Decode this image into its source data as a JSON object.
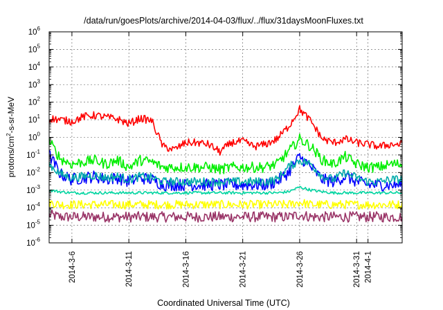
{
  "chart_data": {
    "type": "line",
    "title": "/data/run/goesPlots/archive/2014-04-03/flux/../flux/31daysMoonFluxes.txt",
    "xlabel": "Coordinated Universal Time (UTC)",
    "ylabel": "protons/cm2-s-sr-MeV",
    "ylabel_parts": [
      "protons/cm",
      "2",
      "-s-sr-MeV"
    ],
    "yscale": "log",
    "ylim_exponents": [
      -6,
      6
    ],
    "y_ticks": [
      {
        "base": "10",
        "exp": "-6"
      },
      {
        "base": "10",
        "exp": "-5"
      },
      {
        "base": "10",
        "exp": "-4"
      },
      {
        "base": "10",
        "exp": "-3"
      },
      {
        "base": "10",
        "exp": "-2"
      },
      {
        "base": "10",
        "exp": "-1"
      },
      {
        "base": "10",
        "exp": "0"
      },
      {
        "base": "10",
        "exp": "1"
      },
      {
        "base": "10",
        "exp": "2"
      },
      {
        "base": "10",
        "exp": "3"
      },
      {
        "base": "10",
        "exp": "4"
      },
      {
        "base": "10",
        "exp": "5"
      },
      {
        "base": "10",
        "exp": "6"
      }
    ],
    "xlim": [
      "2014-03-04T00:00",
      "2014-04-04T00:00"
    ],
    "x_ticks": [
      {
        "label": "2014-3-6",
        "date": "2014-03-06"
      },
      {
        "label": "2014-3-11",
        "date": "2014-03-11"
      },
      {
        "label": "2014-3-16",
        "date": "2014-03-16"
      },
      {
        "label": "2014-3-21",
        "date": "2014-03-21"
      },
      {
        "label": "2014-3-26",
        "date": "2014-03-26"
      },
      {
        "label": "2014-3-31",
        "date": "2014-03-31"
      },
      {
        "label": "2014-4-1",
        "date": "2014-04-01"
      }
    ],
    "grid": true,
    "legend": "none",
    "series": [
      {
        "color": "#ff0000",
        "noise": 0.22,
        "x": [
          "2014-03-04",
          "2014-03-05",
          "2014-03-06",
          "2014-03-07",
          "2014-03-08",
          "2014-03-09",
          "2014-03-10",
          "2014-03-11",
          "2014-03-12",
          "2014-03-13",
          "2014-03-14",
          "2014-03-15",
          "2014-03-16",
          "2014-03-17",
          "2014-03-18",
          "2014-03-19",
          "2014-03-20",
          "2014-03-21",
          "2014-03-22",
          "2014-03-23",
          "2014-03-24",
          "2014-03-25",
          "2014-03-26",
          "2014-03-27",
          "2014-03-28",
          "2014-03-29",
          "2014-03-30",
          "2014-03-31",
          "2014-04-01",
          "2014-04-02",
          "2014-04-03"
        ],
        "y": [
          12,
          10,
          8,
          15,
          18,
          14,
          11,
          6,
          12,
          9,
          0.3,
          0.2,
          0.5,
          0.5,
          0.4,
          0.15,
          0.5,
          0.6,
          0.3,
          0.4,
          0.8,
          4,
          40,
          8,
          0.8,
          0.5,
          0.8,
          0.5,
          0.4,
          0.3,
          0.4
        ]
      },
      {
        "color": "#00ee00",
        "noise": 0.3,
        "x": [
          "2014-03-04",
          "2014-03-05",
          "2014-03-06",
          "2014-03-07",
          "2014-03-08",
          "2014-03-09",
          "2014-03-10",
          "2014-03-11",
          "2014-03-12",
          "2014-03-13",
          "2014-03-14",
          "2014-03-15",
          "2014-03-16",
          "2014-03-17",
          "2014-03-18",
          "2014-03-19",
          "2014-03-20",
          "2014-03-21",
          "2014-03-22",
          "2014-03-23",
          "2014-03-24",
          "2014-03-25",
          "2014-03-26",
          "2014-03-27",
          "2014-03-28",
          "2014-03-29",
          "2014-03-30",
          "2014-03-31",
          "2014-04-01",
          "2014-04-02",
          "2014-04-03"
        ],
        "y": [
          0.6,
          0.06,
          0.03,
          0.04,
          0.05,
          0.03,
          0.05,
          0.02,
          0.05,
          0.04,
          0.02,
          0.02,
          0.02,
          0.02,
          0.02,
          0.015,
          0.02,
          0.02,
          0.02,
          0.02,
          0.03,
          0.15,
          0.8,
          0.3,
          0.05,
          0.03,
          0.08,
          0.03,
          0.02,
          0.02,
          0.03
        ]
      },
      {
        "color": "#00aaaa",
        "noise": 0.25,
        "x": [
          "2014-03-04",
          "2014-03-05",
          "2014-03-06",
          "2014-03-07",
          "2014-03-08",
          "2014-03-09",
          "2014-03-10",
          "2014-03-11",
          "2014-03-12",
          "2014-03-13",
          "2014-03-14",
          "2014-03-15",
          "2014-03-16",
          "2014-03-17",
          "2014-03-18",
          "2014-03-19",
          "2014-03-20",
          "2014-03-21",
          "2014-03-22",
          "2014-03-23",
          "2014-03-24",
          "2014-03-25",
          "2014-03-26",
          "2014-03-27",
          "2014-03-28",
          "2014-03-29",
          "2014-03-30",
          "2014-03-31",
          "2014-04-01",
          "2014-04-02",
          "2014-04-03"
        ],
        "y": [
          0.03,
          0.008,
          0.005,
          0.006,
          0.007,
          0.005,
          0.006,
          0.004,
          0.006,
          0.005,
          0.003,
          0.003,
          0.003,
          0.003,
          0.003,
          0.003,
          0.003,
          0.003,
          0.003,
          0.003,
          0.004,
          0.02,
          0.05,
          0.03,
          0.006,
          0.004,
          0.01,
          0.005,
          0.003,
          0.003,
          0.004
        ]
      },
      {
        "color": "#0000ff",
        "noise": 0.35,
        "x": [
          "2014-03-04",
          "2014-03-05",
          "2014-03-06",
          "2014-03-07",
          "2014-03-08",
          "2014-03-09",
          "2014-03-10",
          "2014-03-11",
          "2014-03-12",
          "2014-03-13",
          "2014-03-14",
          "2014-03-15",
          "2014-03-16",
          "2014-03-17",
          "2014-03-18",
          "2014-03-19",
          "2014-03-20",
          "2014-03-21",
          "2014-03-22",
          "2014-03-23",
          "2014-03-24",
          "2014-03-25",
          "2014-03-26",
          "2014-03-27",
          "2014-03-28",
          "2014-03-29",
          "2014-03-30",
          "2014-03-31",
          "2014-04-01",
          "2014-04-02",
          "2014-04-03"
        ],
        "y": [
          0.1,
          0.008,
          0.004,
          0.005,
          0.006,
          0.004,
          0.005,
          0.003,
          0.005,
          0.004,
          0.002,
          0.002,
          0.002,
          0.002,
          0.002,
          0.002,
          0.002,
          0.002,
          0.002,
          0.002,
          0.003,
          0.01,
          0.08,
          0.02,
          0.004,
          0.003,
          0.006,
          0.003,
          0.002,
          0.002,
          0.002
        ]
      },
      {
        "color": "#00d4a0",
        "noise": 0.08,
        "x": [
          "2014-03-04",
          "2014-03-05",
          "2014-03-06",
          "2014-03-07",
          "2014-03-08",
          "2014-03-09",
          "2014-03-10",
          "2014-03-11",
          "2014-03-12",
          "2014-03-13",
          "2014-03-14",
          "2014-03-15",
          "2014-03-16",
          "2014-03-17",
          "2014-03-18",
          "2014-03-19",
          "2014-03-20",
          "2014-03-21",
          "2014-03-22",
          "2014-03-23",
          "2014-03-24",
          "2014-03-25",
          "2014-03-26",
          "2014-03-27",
          "2014-03-28",
          "2014-03-29",
          "2014-03-30",
          "2014-03-31",
          "2014-04-01",
          "2014-04-02",
          "2014-04-03"
        ],
        "y": [
          0.001,
          0.0008,
          0.0007,
          0.0007,
          0.0007,
          0.0007,
          0.0007,
          0.0007,
          0.0007,
          0.0007,
          0.0007,
          0.0007,
          0.0007,
          0.0007,
          0.0007,
          0.0007,
          0.0007,
          0.0007,
          0.0007,
          0.0007,
          0.0007,
          0.0008,
          0.0015,
          0.001,
          0.0008,
          0.0007,
          0.0007,
          0.0007,
          0.0007,
          0.0007,
          0.0007
        ]
      },
      {
        "color": "#ffff00",
        "noise": 0.25,
        "x": [
          "2014-03-04",
          "2014-03-05",
          "2014-03-06",
          "2014-03-07",
          "2014-03-08",
          "2014-03-09",
          "2014-03-10",
          "2014-03-11",
          "2014-03-12",
          "2014-03-13",
          "2014-03-14",
          "2014-03-15",
          "2014-03-16",
          "2014-03-17",
          "2014-03-18",
          "2014-03-19",
          "2014-03-20",
          "2014-03-21",
          "2014-03-22",
          "2014-03-23",
          "2014-03-24",
          "2014-03-25",
          "2014-03-26",
          "2014-03-27",
          "2014-03-28",
          "2014-03-29",
          "2014-03-30",
          "2014-03-31",
          "2014-04-01",
          "2014-04-02",
          "2014-04-03"
        ],
        "y": [
          0.0002,
          0.00015,
          0.00015,
          0.00015,
          0.00015,
          0.00015,
          0.00015,
          0.00015,
          0.00015,
          0.00015,
          0.00015,
          0.00015,
          0.00015,
          0.00015,
          0.00015,
          0.00015,
          0.00015,
          0.00015,
          0.00015,
          0.00015,
          0.00015,
          0.00015,
          0.0002,
          0.00015,
          0.00015,
          0.00015,
          0.00015,
          0.00015,
          0.00015,
          0.00015,
          0.00015
        ]
      },
      {
        "color": "#993366",
        "noise": 0.3,
        "x": [
          "2014-03-04",
          "2014-03-05",
          "2014-03-06",
          "2014-03-07",
          "2014-03-08",
          "2014-03-09",
          "2014-03-10",
          "2014-03-11",
          "2014-03-12",
          "2014-03-13",
          "2014-03-14",
          "2014-03-15",
          "2014-03-16",
          "2014-03-17",
          "2014-03-18",
          "2014-03-19",
          "2014-03-20",
          "2014-03-21",
          "2014-03-22",
          "2014-03-23",
          "2014-03-24",
          "2014-03-25",
          "2014-03-26",
          "2014-03-27",
          "2014-03-28",
          "2014-03-29",
          "2014-03-30",
          "2014-03-31",
          "2014-04-01",
          "2014-04-02",
          "2014-04-03"
        ],
        "y": [
          4e-05,
          3e-05,
          3e-05,
          3e-05,
          3e-05,
          3e-05,
          3e-05,
          3e-05,
          3e-05,
          3e-05,
          3e-05,
          3e-05,
          3e-05,
          3e-05,
          3e-05,
          3e-05,
          3e-05,
          3e-05,
          3e-05,
          3e-05,
          3e-05,
          3e-05,
          4e-05,
          3e-05,
          3e-05,
          3e-05,
          3e-05,
          3e-05,
          3e-05,
          3e-05,
          3e-05
        ]
      }
    ]
  }
}
